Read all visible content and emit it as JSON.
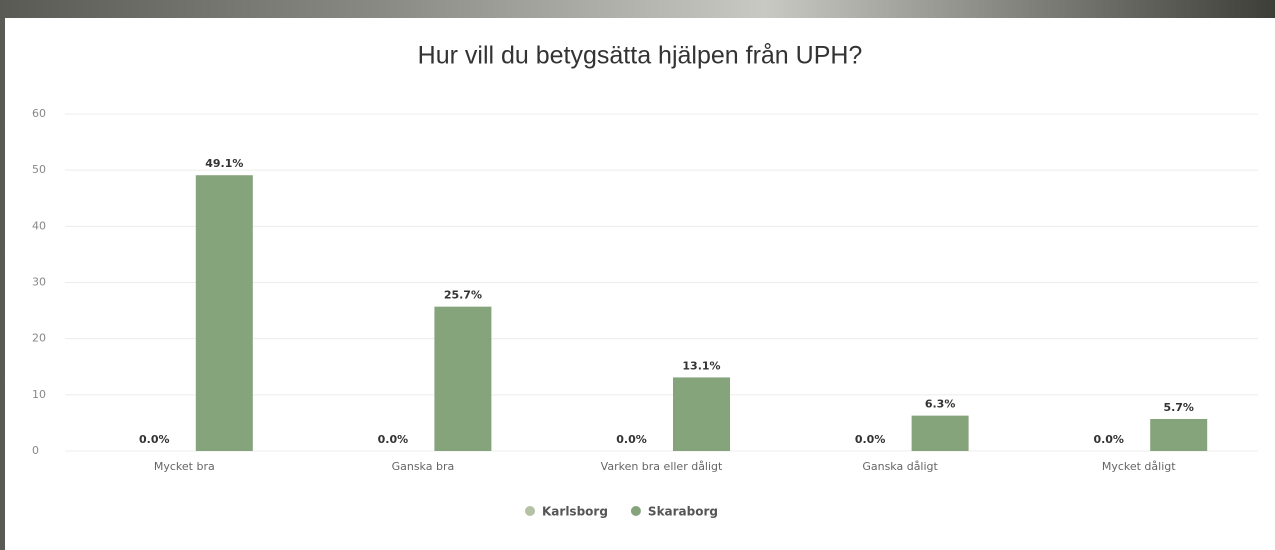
{
  "chart_data": {
    "type": "bar",
    "title": "Hur vill du betygsätta hjälpen från UPH?",
    "categories": [
      "Mycket bra",
      "Ganska bra",
      "Varken bra eller dåligt",
      "Ganska dåligt",
      "Mycket dåligt"
    ],
    "series": [
      {
        "name": "Karlsborg",
        "color": "#b3c2a4",
        "values": [
          0,
          0,
          0,
          0,
          0
        ],
        "value_labels": [
          "0.0%",
          "0.0%",
          "0.0%",
          "0.0%",
          "0.0%"
        ]
      },
      {
        "name": "Skaraborg",
        "color": "#86a47c",
        "values": [
          49.1,
          25.7,
          13.1,
          6.3,
          5.7
        ],
        "value_labels": [
          "49.1%",
          "25.7%",
          "13.1%",
          "6.3%",
          "5.7%"
        ]
      }
    ],
    "ylim": [
      0,
      60
    ],
    "yticks": [
      0,
      10,
      20,
      30,
      40,
      50,
      60
    ],
    "grid": true,
    "legend": "bottom"
  }
}
